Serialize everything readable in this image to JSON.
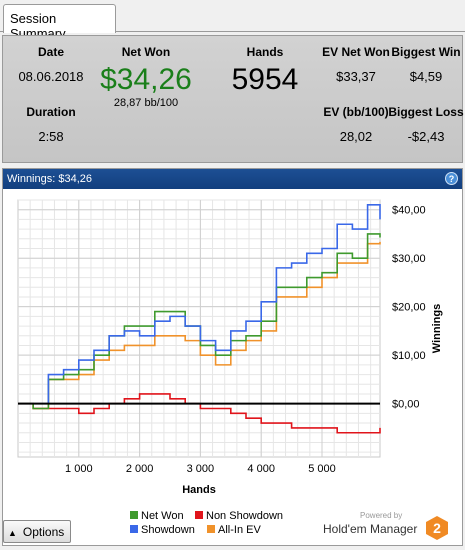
{
  "tab": {
    "label": "Session Summary"
  },
  "summary": {
    "date_label": "Date",
    "date_value": "08.06.2018",
    "duration_label": "Duration",
    "duration_value": "2:58",
    "net_won_label": "Net Won",
    "net_won_value": "$34,26",
    "net_won_bb": "28,87 bb/100",
    "hands_label": "Hands",
    "hands_value": "5954",
    "ev_net_won_label": "EV Net Won",
    "ev_net_won_value": "$33,37",
    "ev_bb_label": "EV (bb/100)",
    "ev_bb_value": "28,02",
    "biggest_win_label": "Biggest Win",
    "biggest_win_value": "$4,59",
    "biggest_loss_label": "Biggest Loss",
    "biggest_loss_value": "-$2,43"
  },
  "panel": {
    "title": "Winnings: $34,26",
    "help_icon": "?"
  },
  "chart_data": {
    "type": "line",
    "title": "Winnings: $34,26",
    "xlabel": "Hands",
    "ylabel": "Winnings",
    "xlim": [
      0,
      5954
    ],
    "ylim": [
      -11,
      42
    ],
    "x_ticks": [
      1000,
      2000,
      3000,
      4000,
      5000
    ],
    "x_tick_labels": [
      "1 000",
      "2 000",
      "3 000",
      "4 000",
      "5 000"
    ],
    "y_ticks": [
      0,
      10,
      20,
      30,
      40
    ],
    "y_tick_labels": [
      "$0,00",
      "$10,00",
      "$20,00",
      "$30,00",
      "$40,00"
    ],
    "grid": true,
    "legend_position": "bottom",
    "x": [
      0,
      250,
      500,
      750,
      1000,
      1250,
      1500,
      1750,
      2000,
      2250,
      2500,
      2750,
      3000,
      3250,
      3500,
      3750,
      4000,
      4250,
      4500,
      4750,
      5000,
      5250,
      5500,
      5750,
      5954
    ],
    "series": [
      {
        "name": "Net Won",
        "color": "#3f9a2e",
        "values": [
          0,
          -1,
          5,
          6,
          7,
          10,
          14,
          16,
          16,
          19,
          19,
          16,
          12,
          10,
          13,
          14,
          17,
          24,
          24,
          26,
          27,
          31,
          30,
          35,
          34.26
        ]
      },
      {
        "name": "Non Showdown",
        "color": "#e0141b",
        "values": [
          0,
          -1,
          -1,
          -1,
          -2,
          -1,
          0,
          1,
          2,
          2,
          1,
          0,
          -1,
          -1,
          -2,
          -3,
          -4,
          -4,
          -5,
          -5,
          -5,
          -6,
          -6,
          -6,
          -5
        ]
      },
      {
        "name": "Showdown",
        "color": "#3a68e8",
        "values": [
          0,
          0,
          6,
          7,
          9,
          11,
          14,
          15,
          14,
          17,
          18,
          16,
          13,
          11,
          15,
          17,
          21,
          28,
          29,
          31,
          32,
          37,
          36,
          41,
          38
        ]
      },
      {
        "name": "All-In EV",
        "color": "#f0922b",
        "values": [
          0,
          -1,
          5,
          5,
          6,
          9,
          11,
          12,
          12,
          14,
          14,
          13,
          10,
          8,
          11,
          13,
          15,
          22,
          22,
          24,
          26,
          29,
          29,
          33,
          33.37
        ]
      }
    ]
  },
  "options_button": {
    "label": "Options",
    "icon": "up-triangle-icon"
  },
  "brand": {
    "powered_by": "Powered by",
    "name": "Hold'em Manager",
    "badge": "2"
  }
}
